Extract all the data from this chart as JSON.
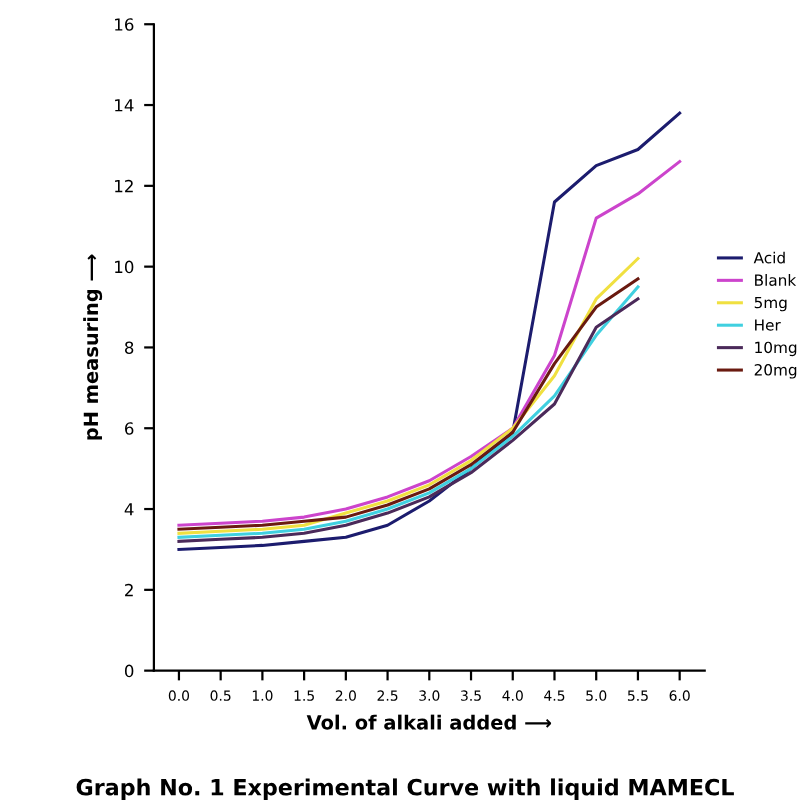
{
  "chart_data": {
    "type": "line",
    "title": "Graph No. 1 Experimental Curve with liquid MAMECL",
    "xlabel": "Vol. of alkali added ⟶",
    "ylabel": "pH measuring ⟶",
    "categories": [
      "0.0",
      "0.5",
      "1.0",
      "1.5",
      "2.0",
      "2.5",
      "3.0",
      "3.5",
      "4.0",
      "4.5",
      "5.0",
      "5.5",
      "6.0"
    ],
    "ylim": [
      0,
      16
    ],
    "yticks": [
      0,
      2,
      4,
      6,
      8,
      10,
      12,
      14,
      16
    ],
    "legend": "right",
    "marker": "none",
    "line_style": "solid",
    "grid": false,
    "series": [
      {
        "name": "Acid",
        "color": "#1c1c6e",
        "values": [
          3.0,
          3.05,
          3.1,
          3.2,
          3.3,
          3.6,
          4.2,
          5.0,
          5.9,
          11.6,
          12.5,
          12.9,
          13.8
        ]
      },
      {
        "name": "Blank",
        "color": "#cc44cc",
        "values": [
          3.6,
          3.65,
          3.7,
          3.8,
          4.0,
          4.3,
          4.7,
          5.3,
          6.0,
          7.8,
          11.2,
          11.8,
          12.6
        ]
      },
      {
        "name": "5mg",
        "color": "#f0e040",
        "values": [
          3.4,
          3.45,
          3.5,
          3.6,
          3.9,
          4.2,
          4.6,
          5.2,
          6.0,
          7.3,
          9.2,
          10.2,
          null
        ]
      },
      {
        "name": "Her",
        "color": "#40d0e0",
        "values": [
          3.3,
          3.35,
          3.4,
          3.5,
          3.7,
          4.0,
          4.4,
          5.0,
          5.8,
          6.8,
          8.3,
          9.5,
          null
        ]
      },
      {
        "name": "10mg",
        "color": "#4b2a5a",
        "values": [
          3.2,
          3.25,
          3.3,
          3.4,
          3.6,
          3.9,
          4.3,
          4.9,
          5.7,
          6.6,
          8.5,
          9.2,
          null
        ]
      },
      {
        "name": "20mg",
        "color": "#6a1a10",
        "values": [
          3.5,
          3.55,
          3.6,
          3.7,
          3.8,
          4.1,
          4.5,
          5.1,
          5.9,
          7.6,
          9.0,
          9.7,
          null
        ]
      }
    ]
  }
}
